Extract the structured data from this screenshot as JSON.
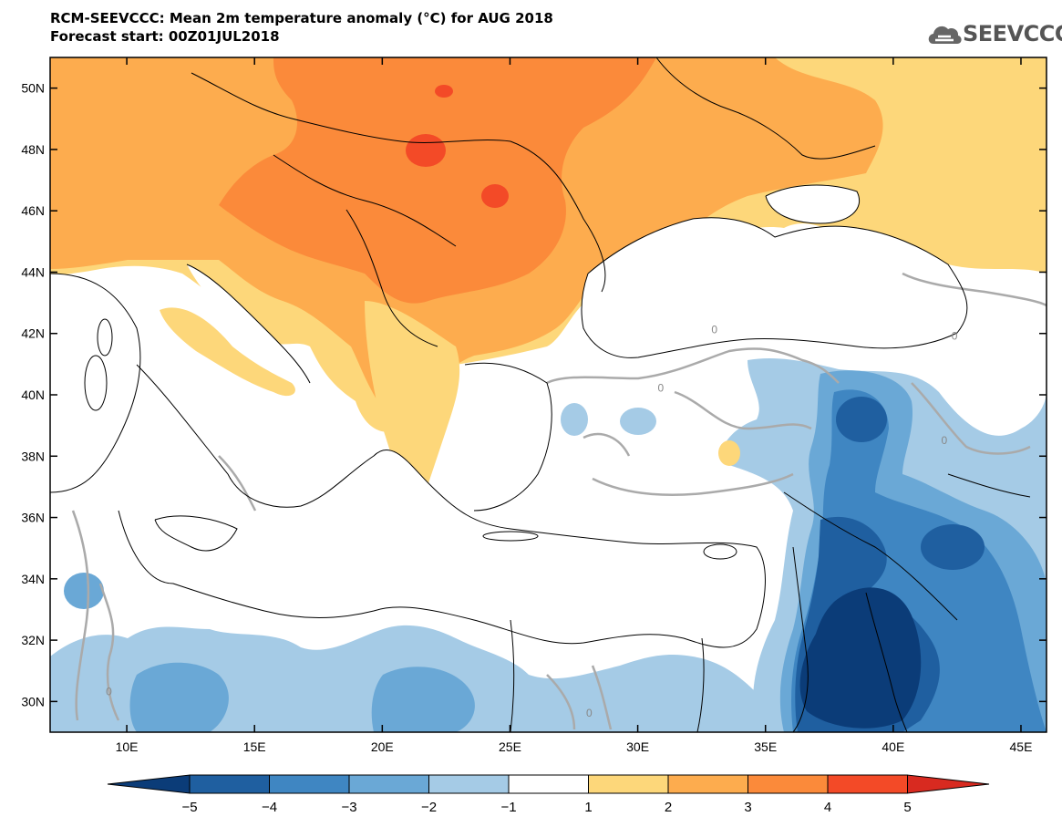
{
  "title": {
    "line1": "RCM-SEEVCCC: Mean 2m temperature anomaly (°C) for AUG 2018",
    "line2": "Forecast start: 00Z01JUL2018"
  },
  "logo": {
    "text": "SEEVCCC",
    "icon": "cloud-icon"
  },
  "map": {
    "lon_range": [
      7,
      46
    ],
    "lat_range": [
      29,
      51
    ],
    "lat_ticks": [
      {
        "value": 30,
        "label": "30N"
      },
      {
        "value": 32,
        "label": "32N"
      },
      {
        "value": 34,
        "label": "34N"
      },
      {
        "value": 36,
        "label": "36N"
      },
      {
        "value": 38,
        "label": "38N"
      },
      {
        "value": 40,
        "label": "40N"
      },
      {
        "value": 42,
        "label": "42N"
      },
      {
        "value": 44,
        "label": "44N"
      },
      {
        "value": 46,
        "label": "46N"
      },
      {
        "value": 48,
        "label": "48N"
      },
      {
        "value": 50,
        "label": "50N"
      }
    ],
    "lon_ticks": [
      {
        "value": 10,
        "label": "10E"
      },
      {
        "value": 15,
        "label": "15E"
      },
      {
        "value": 20,
        "label": "20E"
      },
      {
        "value": 25,
        "label": "25E"
      },
      {
        "value": 30,
        "label": "30E"
      },
      {
        "value": 35,
        "label": "35E"
      },
      {
        "value": 40,
        "label": "40E"
      },
      {
        "value": 45,
        "label": "45E"
      }
    ],
    "contour_labels": [
      {
        "text": "0",
        "lon": 9.3,
        "lat": 30.2
      },
      {
        "text": "0",
        "lon": 28.1,
        "lat": 29.5
      },
      {
        "text": "0",
        "lon": 33.0,
        "lat": 42.0
      },
      {
        "text": "0",
        "lon": 30.9,
        "lat": 40.1
      },
      {
        "text": "0",
        "lon": 42.4,
        "lat": 41.8
      },
      {
        "text": "0",
        "lon": 42.0,
        "lat": 38.4
      }
    ]
  },
  "colorbar": {
    "labels": [
      "−5",
      "−4",
      "−3",
      "−2",
      "−1",
      "1",
      "2",
      "3",
      "4",
      "5"
    ],
    "colors": [
      "#0b3c78",
      "#1f5fa0",
      "#3f86c2",
      "#6aa8d6",
      "#a5cbe6",
      "#ffffff",
      "#fdd77a",
      "#fdac4e",
      "#fb8a3a",
      "#f34a27",
      "#d82a20"
    ]
  },
  "colors": {
    "ocean": "#ffffff",
    "neutral": "#ffffff",
    "pos1": "#fdd77a",
    "pos2": "#fdac4e",
    "pos3": "#fb8a3a",
    "pos4": "#f34a27",
    "neg1": "#a5cbe6",
    "neg2": "#6aa8d6",
    "neg3": "#3f86c2",
    "neg4": "#1f5fa0",
    "neg5": "#0b3c78",
    "zero_contour": "#aaaaaa"
  }
}
